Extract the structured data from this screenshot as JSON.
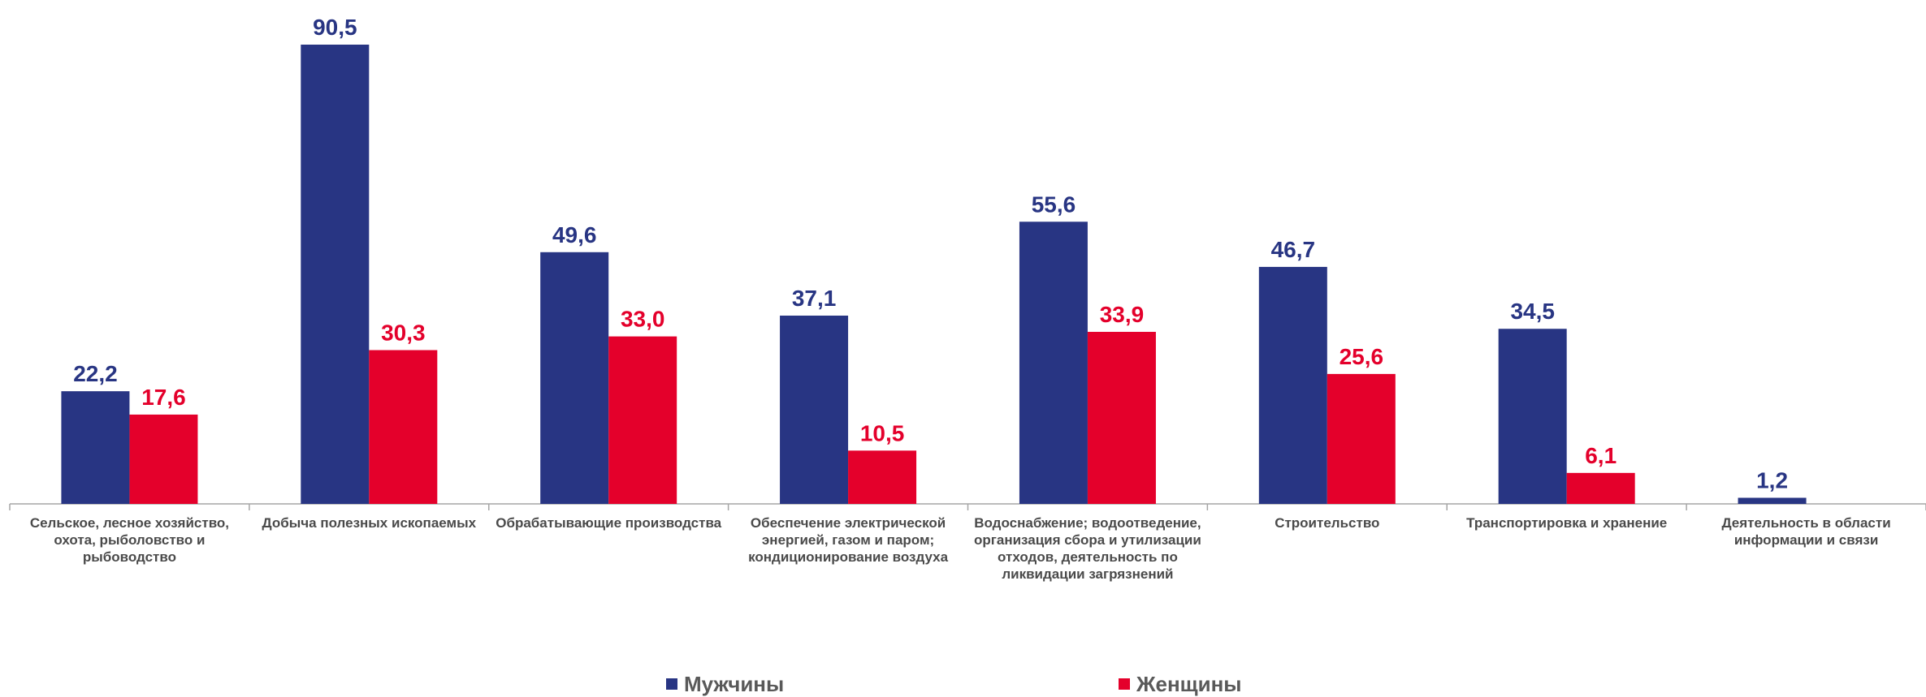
{
  "chart_data": {
    "type": "bar",
    "categories": [
      "Сельское, лесное хозяйство, охота, рыболовство и рыбоводство",
      "Добыча полезных ископаемых",
      "Обрабатывающие производства",
      "Обеспечение электрической энергией, газом и паром; кондиционирование воздуха",
      "Водоснабжение; водоотведение, организация сбора и утилизации отходов, деятельность по ликвидации загрязнений",
      "Строительство",
      "Транспортировка и хранение",
      "Деятельность в области информации и связи"
    ],
    "series": [
      {
        "name": "Мужчины",
        "color": "#283583",
        "values": [
          22.2,
          90.5,
          49.6,
          37.1,
          55.6,
          46.7,
          34.5,
          1.2
        ],
        "labels": [
          "22,2",
          "90,5",
          "49,6",
          "37,1",
          "55,6",
          "46,7",
          "34,5",
          "1,2"
        ]
      },
      {
        "name": "Женщины",
        "color": "#e4002b",
        "values": [
          17.6,
          30.3,
          33.0,
          10.5,
          33.9,
          25.6,
          6.1,
          null
        ],
        "labels": [
          "17,6",
          "30,3",
          "33,0",
          "10,5",
          "33,9",
          "25,6",
          "6,1",
          ""
        ]
      }
    ],
    "ylim": [
      0,
      90.5
    ],
    "grid": false,
    "legend_position": "bottom"
  }
}
